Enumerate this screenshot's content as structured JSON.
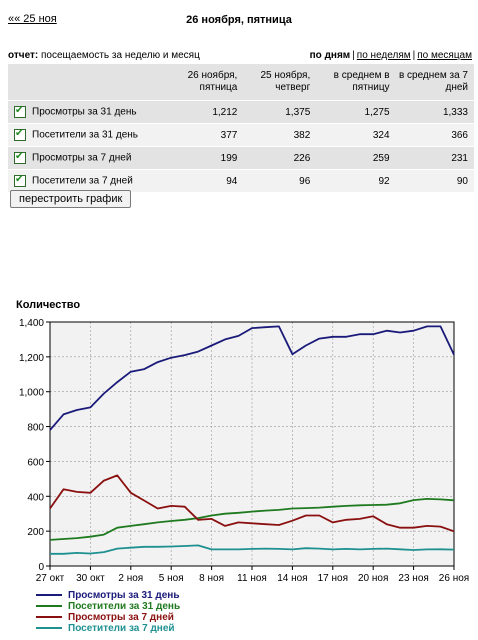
{
  "header": {
    "back_link": "«« 25 ноя",
    "date_title": "26 ноября, пятница"
  },
  "report": {
    "label_bold": "отчет:",
    "label_text": " посещаемость за неделю и месяц",
    "views": [
      "по дням",
      "по неделям",
      "по месяцам"
    ]
  },
  "table": {
    "headers": [
      "",
      "26 ноября, пятница",
      "25 ноября, четверг",
      "в среднем в пятницу",
      "в среднем за 7 дней"
    ],
    "rows": [
      {
        "name": "Просмотры за 31 день",
        "checked": true,
        "values": [
          "1,212",
          "1,375",
          "1,275",
          "1,333"
        ]
      },
      {
        "name": "Посетители за 31 день",
        "checked": true,
        "values": [
          "377",
          "382",
          "324",
          "366"
        ]
      },
      {
        "name": "Просмотры за 7 дней",
        "checked": true,
        "values": [
          "199",
          "226",
          "259",
          "231"
        ]
      },
      {
        "name": "Посетители за 7 дней",
        "checked": true,
        "values": [
          "94",
          "96",
          "92",
          "90"
        ]
      }
    ]
  },
  "rebuild_button": "перестроить график",
  "chart_data": {
    "type": "line",
    "ylabel": "Количество",
    "ylim": [
      0,
      1400
    ],
    "yticks": [
      "0",
      "200",
      "400",
      "600",
      "800",
      "1,000",
      "1,200",
      "1,400"
    ],
    "ytick_values": [
      0,
      200,
      400,
      600,
      800,
      1000,
      1200,
      1400
    ],
    "xtick_labels": [
      "27 окт",
      "30 окт",
      "2 ноя",
      "5 ноя",
      "8 ноя",
      "11 ноя",
      "14 ноя",
      "17 ноя",
      "20 ноя",
      "23 ноя",
      "26 ноя"
    ],
    "x": [
      "27 окт",
      "28 окт",
      "29 окт",
      "30 окт",
      "31 окт",
      "1 ноя",
      "2 ноя",
      "3 ноя",
      "4 ноя",
      "5 ноя",
      "6 ноя",
      "7 ноя",
      "8 ноя",
      "9 ноя",
      "10 ноя",
      "11 ноя",
      "12 ноя",
      "13 ноя",
      "14 ноя",
      "15 ноя",
      "16 ноя",
      "17 ноя",
      "18 ноя",
      "19 ноя",
      "20 ноя",
      "21 ноя",
      "22 ноя",
      "23 ноя",
      "24 ноя",
      "25 ноя",
      "26 ноя"
    ],
    "grid": true,
    "legend_position": "bottom",
    "series": [
      {
        "name": "Просмотры за 31 день",
        "color": "#1a1a7a",
        "values": [
          780,
          870,
          895,
          910,
          990,
          1055,
          1115,
          1130,
          1170,
          1195,
          1210,
          1230,
          1265,
          1300,
          1320,
          1365,
          1370,
          1375,
          1215,
          1265,
          1305,
          1315,
          1315,
          1330,
          1330,
          1350,
          1340,
          1350,
          1375,
          1375,
          1212
        ]
      },
      {
        "name": "Посетители за 31 день",
        "color": "#1f7a1f",
        "values": [
          150,
          155,
          160,
          168,
          180,
          220,
          230,
          240,
          250,
          258,
          265,
          275,
          290,
          300,
          305,
          312,
          318,
          322,
          330,
          332,
          335,
          340,
          345,
          348,
          350,
          352,
          360,
          378,
          385,
          382,
          377
        ]
      },
      {
        "name": "Просмотры за 7 дней",
        "color": "#8a1010",
        "values": [
          330,
          440,
          425,
          420,
          490,
          520,
          420,
          375,
          330,
          345,
          340,
          265,
          270,
          230,
          250,
          245,
          240,
          235,
          260,
          290,
          290,
          250,
          265,
          270,
          285,
          240,
          220,
          220,
          230,
          226,
          199
        ]
      },
      {
        "name": "Посетители за 7 дней",
        "color": "#1f9090",
        "values": [
          70,
          70,
          75,
          72,
          80,
          100,
          105,
          110,
          110,
          112,
          115,
          118,
          95,
          95,
          95,
          98,
          100,
          98,
          95,
          102,
          100,
          95,
          98,
          95,
          98,
          100,
          96,
          92,
          95,
          96,
          94
        ]
      }
    ]
  }
}
